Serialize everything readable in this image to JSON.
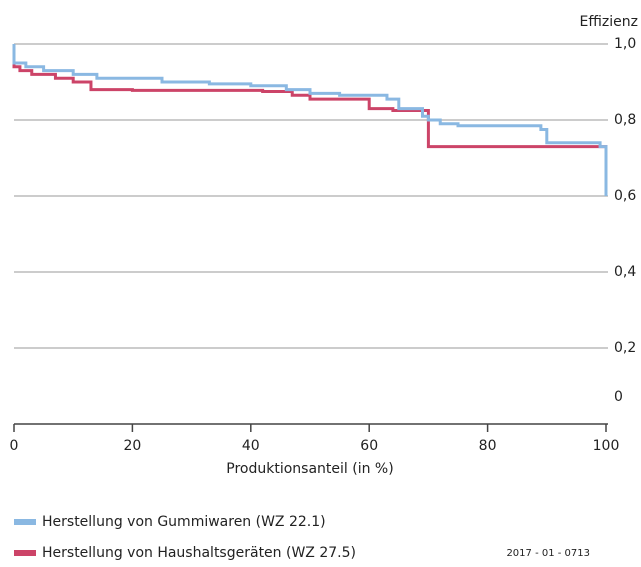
{
  "chart_data": {
    "type": "line",
    "y_axis_label": "Effizienz",
    "x_axis_label": "Produktionsanteil (in %)",
    "source": "2017 - 01 - 0713",
    "xlim": [
      0,
      100
    ],
    "xticks": [
      0,
      20,
      40,
      60,
      80,
      100
    ],
    "ylim": [
      0,
      1.0
    ],
    "yticks": [
      0,
      {
        "value": 0.2,
        "label": "0,2"
      },
      {
        "value": 0.4,
        "label": "0,4"
      },
      {
        "value": 0.6,
        "label": "0,6"
      },
      {
        "value": 0.8,
        "label": "0,8"
      },
      {
        "value": 1.0,
        "label": "1,0"
      }
    ],
    "grid": true,
    "series": [
      {
        "name": "Herstellung von Gummiwaren (WZ 22.1)",
        "color": "#8ab8e2",
        "x": [
          0,
          0,
          2,
          2,
          5,
          5,
          10,
          10,
          14,
          14,
          25,
          25,
          33,
          33,
          40,
          40,
          46,
          46,
          50,
          50,
          55,
          55,
          63,
          63,
          65,
          65,
          69,
          69,
          70,
          70,
          72,
          72,
          75,
          75,
          89,
          89,
          90,
          90,
          99,
          99,
          100,
          100
        ],
        "values": [
          1.0,
          0.95,
          0.95,
          0.94,
          0.94,
          0.93,
          0.93,
          0.92,
          0.92,
          0.91,
          0.91,
          0.9,
          0.9,
          0.895,
          0.895,
          0.89,
          0.89,
          0.88,
          0.88,
          0.87,
          0.87,
          0.865,
          0.865,
          0.855,
          0.855,
          0.83,
          0.83,
          0.81,
          0.81,
          0.8,
          0.8,
          0.79,
          0.79,
          0.785,
          0.785,
          0.775,
          0.775,
          0.74,
          0.74,
          0.73,
          0.73,
          0.6
        ]
      },
      {
        "name": "Herstellung von Haushaltsgeräten (WZ 27.5)",
        "color": "#cc4468",
        "x": [
          0,
          0,
          1,
          1,
          3,
          3,
          7,
          7,
          10,
          10,
          13,
          13,
          20,
          20,
          42,
          42,
          47,
          47,
          50,
          50,
          60,
          60,
          64,
          64,
          70,
          70,
          100,
          100
        ],
        "values": [
          0.97,
          0.94,
          0.94,
          0.93,
          0.93,
          0.92,
          0.92,
          0.91,
          0.91,
          0.9,
          0.9,
          0.88,
          0.88,
          0.878,
          0.878,
          0.875,
          0.875,
          0.865,
          0.865,
          0.855,
          0.855,
          0.83,
          0.83,
          0.825,
          0.825,
          0.73,
          0.73,
          0.69
        ]
      }
    ]
  }
}
